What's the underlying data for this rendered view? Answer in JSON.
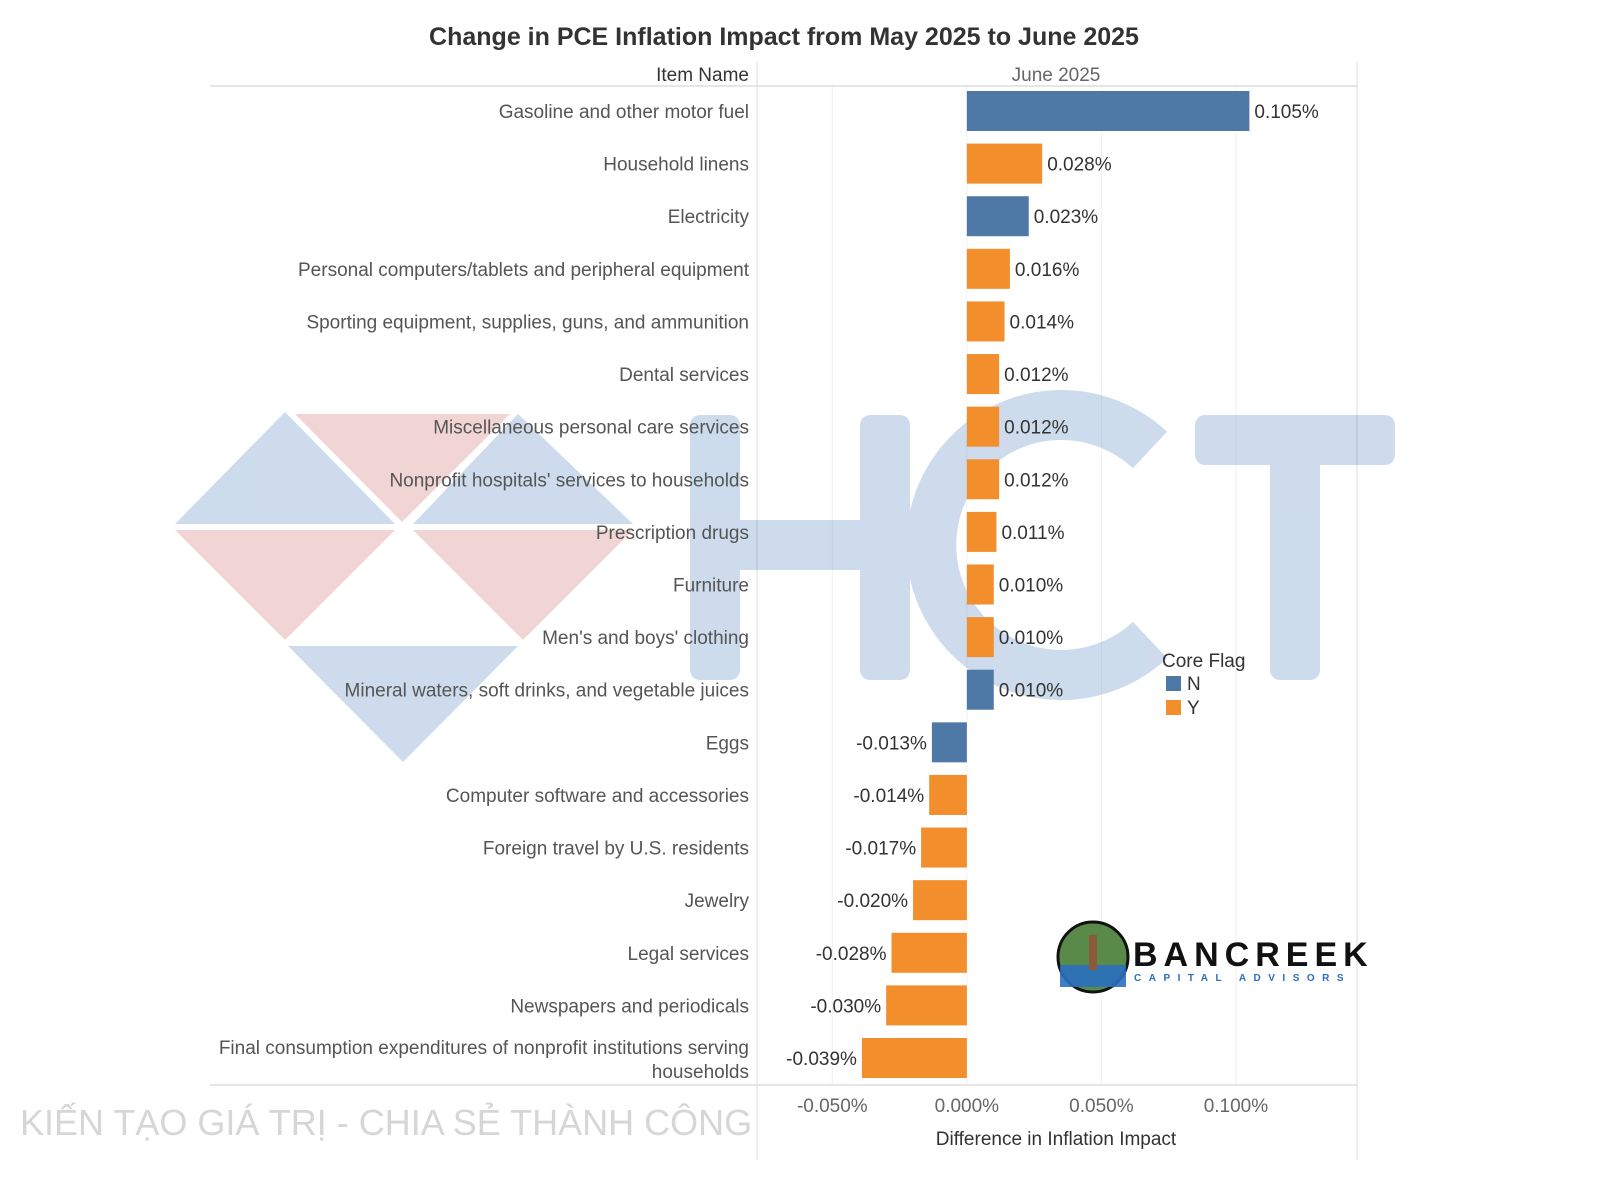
{
  "chart_data": {
    "type": "bar",
    "orientation": "horizontal",
    "title": "Change in PCE Inflation Impact from May 2025 to June 2025",
    "row_header": "Item Name",
    "column_header": "June 2025",
    "xlabel": "Difference in Inflation Impact",
    "xlim": [
      -0.078,
      0.145
    ],
    "x_ticks": [
      "-0.050%",
      "0.000%",
      "0.050%",
      "0.100%"
    ],
    "x_tick_values": [
      -0.05,
      0,
      0.05,
      0.1
    ],
    "grid": "vertical",
    "legend": {
      "title": "Core Flag",
      "placement": "right",
      "items": [
        {
          "label": "N",
          "color": "#4e79a7"
        },
        {
          "label": "Y",
          "color": "#f28e2b"
        }
      ]
    },
    "categories": [
      "Gasoline and other motor fuel",
      "Household linens",
      "Electricity",
      "Personal computers/tablets and peripheral equipment",
      "Sporting equipment, supplies, guns, and ammunition",
      "Dental services",
      "Miscellaneous personal care services",
      "Nonprofit hospitals' services to households",
      "Prescription drugs",
      "Furniture",
      "Men's and boys' clothing",
      "Mineral waters, soft drinks, and vegetable juices",
      "Eggs",
      "Computer software and accessories",
      "Foreign travel by U.S. residents",
      "Jewelry",
      "Legal services",
      "Newspapers and periodicals",
      "Final consumption expenditures of nonprofit institutions serving households"
    ],
    "values": [
      0.105,
      0.028,
      0.023,
      0.016,
      0.014,
      0.012,
      0.012,
      0.012,
      0.011,
      0.01,
      0.01,
      0.01,
      -0.013,
      -0.014,
      -0.017,
      -0.02,
      -0.028,
      -0.03,
      -0.039
    ],
    "data_labels": [
      "0.105%",
      "0.028%",
      "0.023%",
      "0.016%",
      "0.014%",
      "0.012%",
      "0.012%",
      "0.012%",
      "0.011%",
      "0.010%",
      "0.010%",
      "0.010%",
      "-0.013%",
      "-0.014%",
      "-0.017%",
      "-0.020%",
      "-0.028%",
      "-0.030%",
      "-0.039%"
    ],
    "core_flag": [
      "N",
      "Y",
      "N",
      "Y",
      "Y",
      "Y",
      "Y",
      "Y",
      "Y",
      "Y",
      "Y",
      "N",
      "N",
      "Y",
      "Y",
      "Y",
      "Y",
      "Y",
      "Y"
    ]
  },
  "watermark": {
    "letters": "HCT",
    "tagline": "KIẾN TẠO GIÁ TRỊ - CHIA SẺ THÀNH CÔNG"
  },
  "logo": {
    "name": "BANCREEK",
    "subtitle": "CAPITAL ADVISORS"
  }
}
